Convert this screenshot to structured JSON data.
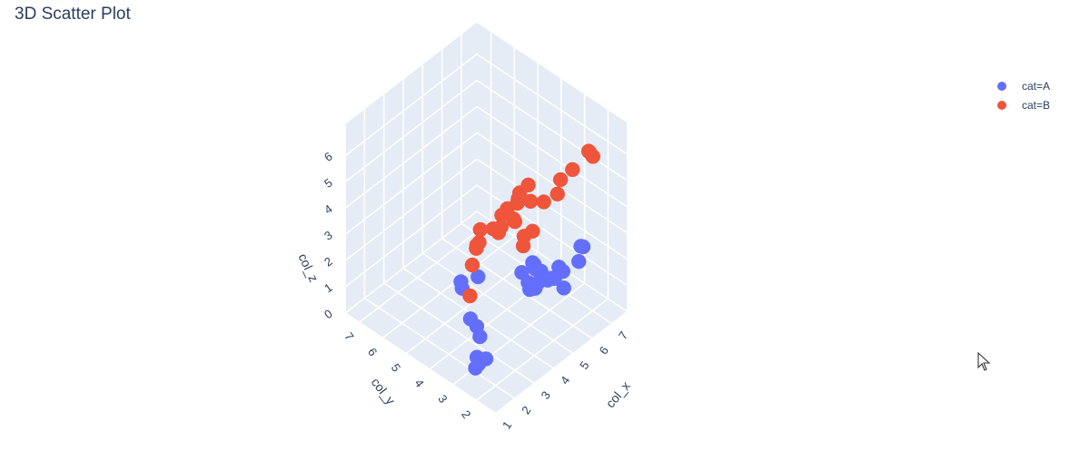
{
  "title": "3D Scatter Plot",
  "legend": [
    {
      "label": "cat=A",
      "color": "#636efa"
    },
    {
      "label": "cat=B",
      "color": "#ef553b"
    }
  ],
  "chart_data": {
    "type": "scatter3d",
    "title": "3D Scatter Plot",
    "axes": {
      "x": {
        "label": "col_x",
        "ticks": [
          "1",
          "2",
          "3",
          "4",
          "5",
          "6",
          "7"
        ]
      },
      "y": {
        "label": "col_y",
        "ticks": [
          "2",
          "3",
          "4",
          "5",
          "6",
          "7"
        ]
      },
      "z": {
        "label": "col_z",
        "ticks": [
          "0",
          "1",
          "2",
          "3",
          "4",
          "5",
          "6"
        ]
      }
    },
    "grid": true,
    "legend_position": "top-right",
    "series": [
      {
        "name": "cat=A",
        "color": "#636efa",
        "points": [
          [
            1.2,
            2.2,
            1.0
          ],
          [
            1.5,
            2.0,
            1.3
          ],
          [
            1.6,
            2.4,
            0.8
          ],
          [
            2.0,
            2.8,
            0.6
          ],
          [
            3.0,
            3.5,
            0.4
          ],
          [
            3.2,
            3.8,
            0.5
          ],
          [
            3.6,
            4.4,
            0.2
          ],
          [
            4.5,
            5.5,
            0.2
          ],
          [
            4.8,
            5.8,
            0.1
          ],
          [
            5.2,
            5.4,
            0.3
          ],
          [
            4.8,
            3.2,
            2.0
          ],
          [
            5.2,
            3.0,
            2.2
          ],
          [
            5.6,
            3.4,
            1.8
          ],
          [
            6.0,
            3.6,
            1.2
          ],
          [
            6.5,
            3.2,
            0.8
          ],
          [
            6.8,
            3.6,
            0.4
          ],
          [
            6.6,
            4.0,
            0.1
          ],
          [
            7.0,
            4.2,
            0.2
          ],
          [
            6.2,
            2.6,
            1.6
          ],
          [
            6.0,
            2.4,
            1.2
          ],
          [
            3.8,
            1.8,
            2.8
          ],
          [
            4.2,
            1.6,
            3.0
          ],
          [
            4.6,
            2.0,
            2.6
          ],
          [
            4.0,
            2.2,
            2.4
          ],
          [
            7.5,
            3.0,
            1.0
          ],
          [
            7.2,
            3.6,
            0.6
          ],
          [
            7.0,
            2.4,
            2.2
          ],
          [
            6.4,
            2.0,
            2.8
          ],
          [
            4.4,
            2.6,
            2.2
          ]
        ]
      },
      {
        "name": "cat=B",
        "color": "#ef553b",
        "points": [
          [
            1.0,
            2.0,
            5.8
          ],
          [
            1.4,
            2.6,
            3.4
          ],
          [
            2.0,
            3.0,
            4.0
          ],
          [
            1.8,
            1.6,
            6.4
          ],
          [
            2.2,
            1.4,
            6.6
          ],
          [
            2.6,
            2.0,
            6.4
          ],
          [
            2.8,
            2.4,
            5.8
          ],
          [
            3.0,
            1.8,
            6.9
          ],
          [
            3.2,
            1.6,
            7.2
          ],
          [
            3.4,
            2.2,
            6.2
          ],
          [
            3.6,
            2.4,
            5.8
          ],
          [
            3.8,
            2.0,
            6.0
          ],
          [
            4.0,
            1.6,
            6.1
          ],
          [
            2.6,
            3.2,
            4.4
          ],
          [
            2.9,
            3.4,
            4.6
          ],
          [
            3.4,
            3.0,
            4.6
          ],
          [
            3.6,
            3.2,
            4.2
          ],
          [
            3.8,
            3.6,
            4.0
          ],
          [
            4.2,
            3.0,
            4.4
          ],
          [
            4.4,
            3.2,
            4.2
          ],
          [
            3.2,
            3.8,
            3.6
          ],
          [
            5.0,
            1.2,
            7.0
          ],
          [
            6.6,
            1.8,
            6.4
          ],
          [
            6.8,
            2.0,
            6.2
          ],
          [
            6.9,
            1.9,
            6.0
          ],
          [
            6.4,
            3.0,
            4.2
          ],
          [
            6.8,
            3.2,
            4.4
          ],
          [
            5.4,
            3.6,
            2.8
          ],
          [
            5.6,
            3.4,
            3.0
          ],
          [
            5.6,
            3.8,
            2.2
          ]
        ]
      }
    ]
  }
}
